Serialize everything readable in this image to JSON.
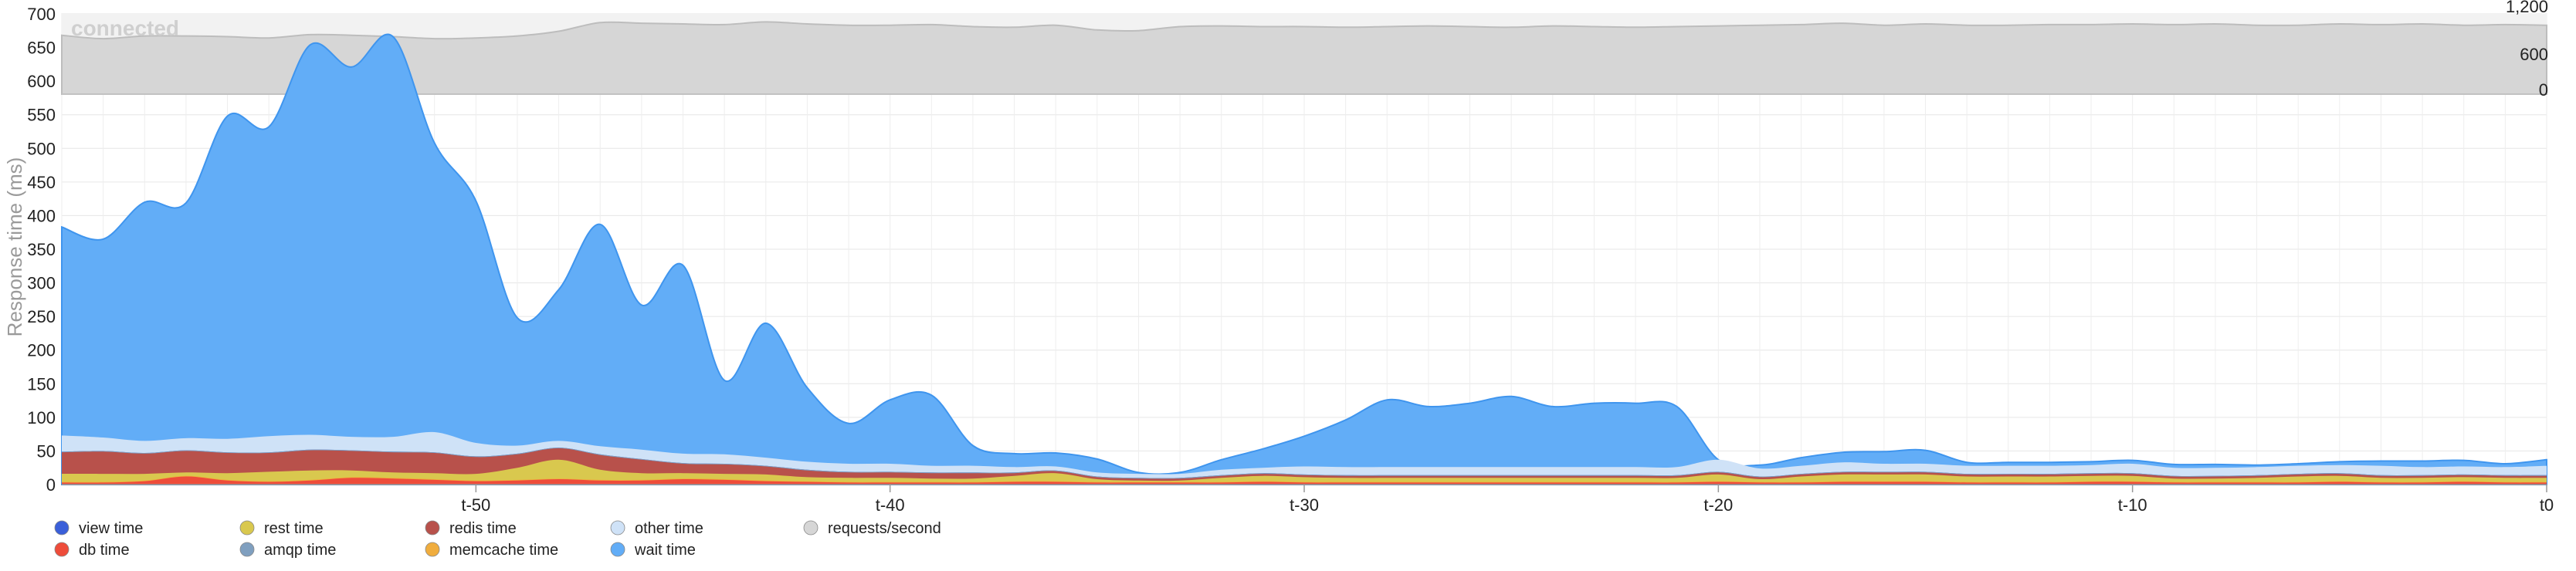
{
  "status": "connected",
  "colors": {
    "wait": "#62adf7",
    "other": "#cfe2f7",
    "redis": "#b8514b",
    "rest": "#d9c84e",
    "memcache": "#f0ad3e",
    "db": "#ee4c3a",
    "amqp": "#7f9fbf",
    "view": "#3a5fd9",
    "requests": "#d6d6d6"
  },
  "chart_data": {
    "type": "area",
    "ylabel": "Response time (ms)",
    "ylim": [
      0,
      700
    ],
    "y_ticks": [
      "0",
      "50",
      "100",
      "150",
      "200",
      "250",
      "300",
      "350",
      "400",
      "450",
      "500",
      "550",
      "600",
      "650",
      "700"
    ],
    "xlim": [
      -60,
      0
    ],
    "x_ticks": [
      {
        "x": -50,
        "label": "t-50"
      },
      {
        "x": -40,
        "label": "t-40"
      },
      {
        "x": -30,
        "label": "t-30"
      },
      {
        "x": -20,
        "label": "t-20"
      },
      {
        "x": -10,
        "label": "t-10"
      },
      {
        "x": 0,
        "label": "t0"
      }
    ],
    "x": [
      -60,
      -59,
      -58,
      -57,
      -56,
      -55,
      -54,
      -53,
      -52,
      -51,
      -50,
      -49,
      -48,
      -47,
      -46,
      -45,
      -44,
      -43,
      -42,
      -41,
      -40,
      -39,
      -38,
      -37,
      -36,
      -35,
      -34,
      -33,
      -32,
      -31,
      -30,
      -29,
      -28,
      -27,
      -26,
      -25,
      -24,
      -23,
      -22,
      -21,
      -20,
      -19,
      -18,
      -17,
      -16,
      -15,
      -14,
      -13,
      -12,
      -11,
      -10,
      -9,
      -8,
      -7,
      -6,
      -5,
      -4,
      -3,
      -2,
      -1,
      0
    ],
    "series": [
      {
        "name": "db time",
        "key": "db",
        "values": [
          3,
          3,
          5,
          12,
          6,
          4,
          6,
          10,
          9,
          7,
          5,
          6,
          8,
          6,
          6,
          8,
          7,
          5,
          4,
          3,
          3,
          3,
          3,
          4,
          4,
          3,
          3,
          3,
          3,
          4,
          3,
          3,
          3,
          3,
          3,
          3,
          3,
          3,
          3,
          3,
          4,
          3,
          3,
          4,
          4,
          4,
          3,
          3,
          3,
          4,
          4,
          3,
          3,
          3,
          3,
          4,
          3,
          3,
          4,
          3,
          3
        ]
      },
      {
        "name": "memcache time",
        "key": "memcache",
        "values": [
          1,
          1,
          1,
          1,
          1,
          1,
          1,
          1,
          1,
          1,
          1,
          1,
          1,
          1,
          1,
          1,
          1,
          1,
          1,
          1,
          1,
          1,
          1,
          1,
          1,
          1,
          1,
          1,
          1,
          1,
          1,
          1,
          1,
          1,
          1,
          1,
          1,
          1,
          1,
          1,
          1,
          1,
          1,
          1,
          1,
          1,
          1,
          1,
          1,
          1,
          1,
          1,
          1,
          1,
          1,
          1,
          1,
          1,
          1,
          1,
          1
        ]
      },
      {
        "name": "rest time",
        "key": "rest",
        "values": [
          12,
          12,
          10,
          5,
          10,
          14,
          14,
          10,
          8,
          9,
          10,
          18,
          28,
          15,
          10,
          8,
          8,
          9,
          6,
          6,
          6,
          5,
          5,
          8,
          12,
          4,
          2,
          2,
          6,
          8,
          7,
          6,
          6,
          6,
          6,
          6,
          6,
          6,
          6,
          6,
          10,
          4,
          8,
          10,
          10,
          10,
          8,
          8,
          8,
          8,
          8,
          5,
          5,
          6,
          8,
          8,
          6,
          6,
          6,
          6,
          6
        ]
      },
      {
        "name": "redis time",
        "key": "redis",
        "values": [
          32,
          33,
          30,
          32,
          30,
          28,
          30,
          29,
          30,
          30,
          25,
          20,
          17,
          22,
          20,
          14,
          14,
          12,
          10,
          8,
          8,
          8,
          8,
          4,
          3,
          3,
          3,
          3,
          3,
          3,
          3,
          3,
          3,
          3,
          3,
          3,
          3,
          3,
          3,
          3,
          3,
          3,
          3,
          3,
          3,
          3,
          3,
          3,
          3,
          3,
          3,
          3,
          3,
          3,
          3,
          3,
          3,
          3,
          3,
          3,
          3
        ]
      },
      {
        "name": "amqp time",
        "key": "amqp",
        "values": [
          1,
          1,
          1,
          1,
          1,
          1,
          1,
          1,
          1,
          1,
          1,
          1,
          1,
          1,
          1,
          1,
          1,
          1,
          1,
          1,
          1,
          1,
          1,
          1,
          1,
          1,
          1,
          1,
          1,
          1,
          1,
          1,
          1,
          1,
          1,
          1,
          1,
          1,
          1,
          1,
          1,
          1,
          1,
          1,
          1,
          1,
          1,
          1,
          1,
          1,
          1,
          1,
          1,
          1,
          1,
          1,
          1,
          1,
          1,
          1,
          1
        ]
      },
      {
        "name": "view time",
        "key": "view",
        "values": [
          0,
          0,
          0,
          0,
          0,
          0,
          0,
          0,
          0,
          0,
          0,
          0,
          0,
          0,
          0,
          0,
          0,
          0,
          0,
          0,
          0,
          0,
          0,
          0,
          0,
          0,
          0,
          0,
          0,
          0,
          0,
          0,
          0,
          0,
          0,
          0,
          0,
          0,
          0,
          0,
          0,
          0,
          0,
          0,
          0,
          0,
          0,
          0,
          0,
          0,
          0,
          0,
          0,
          0,
          0,
          0,
          0,
          0,
          0,
          0,
          0
        ]
      },
      {
        "name": "other time",
        "key": "other",
        "values": [
          24,
          20,
          18,
          18,
          20,
          24,
          22,
          20,
          22,
          30,
          20,
          12,
          10,
          12,
          14,
          14,
          14,
          12,
          12,
          12,
          12,
          10,
          10,
          8,
          6,
          6,
          6,
          6,
          8,
          8,
          12,
          12,
          12,
          12,
          12,
          12,
          12,
          12,
          12,
          12,
          18,
          12,
          12,
          14,
          12,
          12,
          12,
          12,
          12,
          12,
          14,
          12,
          12,
          12,
          12,
          12,
          14,
          12,
          12,
          12,
          14
        ]
      },
      {
        "name": "wait time",
        "key": "wait",
        "values": [
          310,
          295,
          355,
          350,
          480,
          460,
          580,
          550,
          595,
          430,
          360,
          190,
          225,
          330,
          215,
          280,
          110,
          200,
          110,
          60,
          95,
          105,
          30,
          20,
          20,
          20,
          2,
          2,
          15,
          28,
          45,
          70,
          100,
          90,
          95,
          105,
          90,
          95,
          95,
          90,
          0,
          5,
          12,
          15,
          18,
          20,
          5,
          5,
          5,
          5,
          5,
          5,
          5,
          3,
          3,
          5,
          7,
          9,
          9,
          5,
          9
        ]
      },
      {
        "name": "requests/second",
        "key": "requests",
        "values": [
          880,
          830,
          870,
          870,
          860,
          840,
          890,
          880,
          860,
          830,
          840,
          870,
          940,
          1070,
          1060,
          1050,
          1040,
          1080,
          1050,
          1030,
          1030,
          1040,
          1010,
          1000,
          1030,
          960,
          950,
          1010,
          1020,
          1010,
          1010,
          1000,
          1010,
          1020,
          1010,
          1000,
          1020,
          1010,
          1000,
          1010,
          1020,
          1030,
          1040,
          1060,
          1030,
          1050,
          1030,
          1030,
          1040,
          1040,
          1050,
          1040,
          1050,
          1030,
          1030,
          1050,
          1040,
          1050,
          1030,
          1040,
          1030
        ]
      }
    ],
    "secondary_axis": {
      "label_ticks": [
        "0",
        "600",
        "1,200"
      ],
      "ylim": [
        0,
        1200
      ]
    },
    "grid": true,
    "legend_placement": "bottom-left",
    "legend": [
      {
        "label": "view time",
        "key": "view"
      },
      {
        "label": "db time",
        "key": "db"
      },
      {
        "label": "rest time",
        "key": "rest"
      },
      {
        "label": "amqp time",
        "key": "amqp"
      },
      {
        "label": "redis time",
        "key": "redis"
      },
      {
        "label": "memcache time",
        "key": "memcache"
      },
      {
        "label": "other time",
        "key": "other"
      },
      {
        "label": "wait time",
        "key": "wait"
      },
      {
        "label": "requests/second",
        "key": "requests"
      }
    ]
  }
}
